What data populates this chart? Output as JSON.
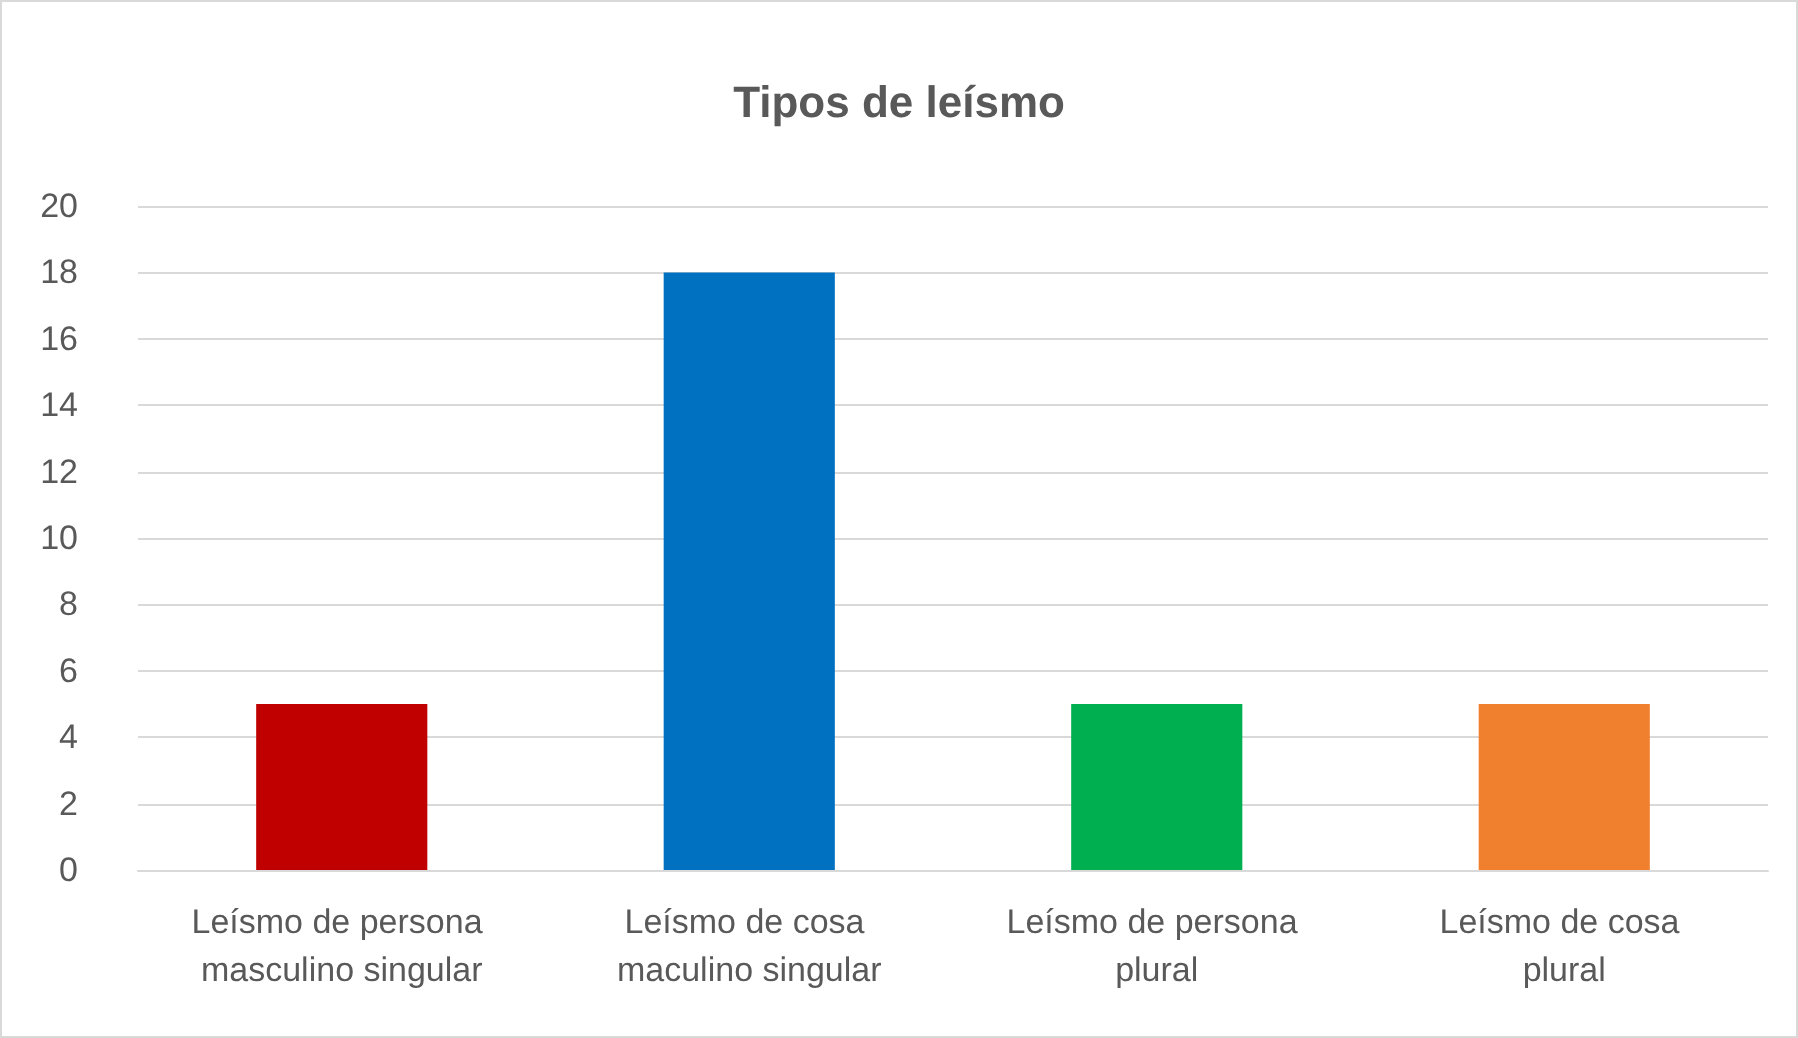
{
  "chart_data": {
    "type": "bar",
    "title": "Tipos de leísmo",
    "categories": [
      "Leísmo de persona masculino singular",
      "Leísmo de cosa maculino singular",
      "Leísmo de persona plural",
      "Leísmo de cosa plural"
    ],
    "values": [
      5,
      18,
      5,
      5
    ],
    "colors": [
      "#c00000",
      "#0070c0",
      "#00b050",
      "#f0802e"
    ],
    "ylim": [
      0,
      20
    ],
    "yticks": [
      0,
      2,
      4,
      6,
      8,
      10,
      12,
      14,
      16,
      18,
      20
    ],
    "grid": "y"
  }
}
